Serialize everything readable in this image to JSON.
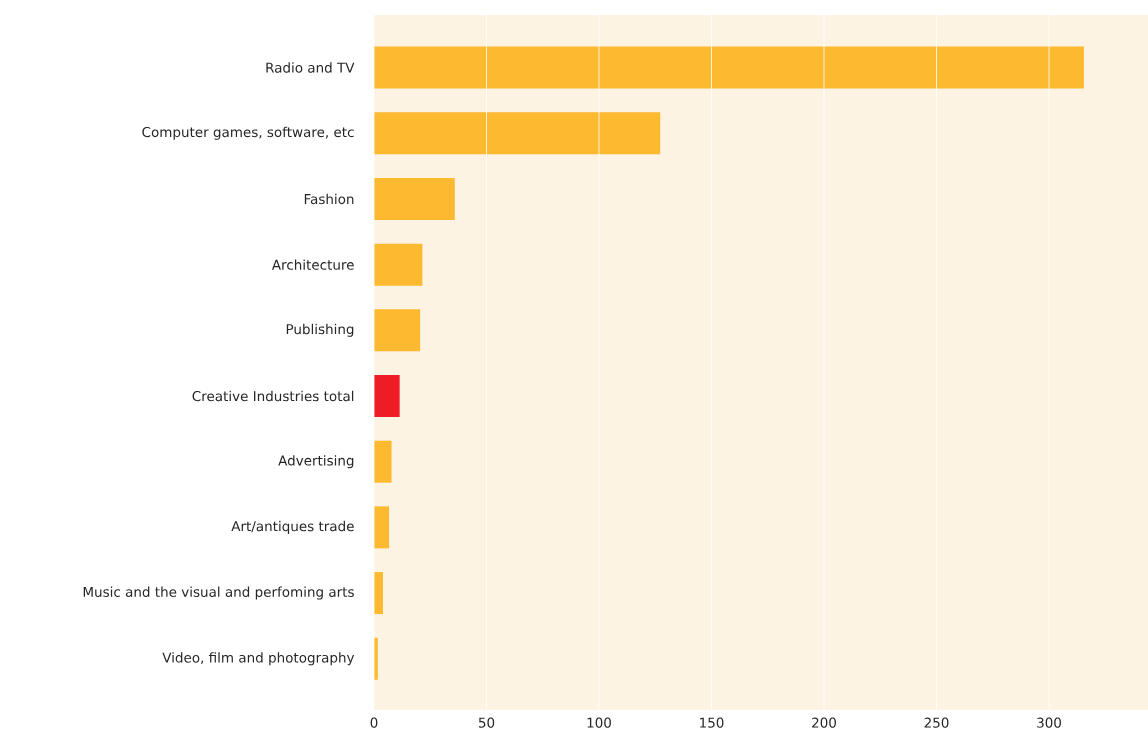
{
  "chart_data": {
    "type": "bar",
    "orientation": "horizontal",
    "categories": [
      "Radio and TV",
      "Computer games, software, etc",
      "Fashion",
      "Architecture",
      "Publishing",
      "Creative Industries total",
      "Advertising",
      "Art/antiques trade",
      "Music and the visual and perfoming arts",
      "Video, film and photography"
    ],
    "values": [
      315.5,
      127.2,
      35.9,
      21.5,
      20.5,
      11.4,
      7.8,
      6.7,
      4.0,
      1.7
    ],
    "colors": [
      "#fdb92f",
      "#fdb92f",
      "#fdb92f",
      "#fdb92f",
      "#fdb92f",
      "#ee1c25",
      "#fdb92f",
      "#fdb92f",
      "#fdb92f",
      "#fdb92f"
    ],
    "xlim": [
      0,
      344
    ],
    "xticks": [
      0,
      50,
      100,
      150,
      200,
      250,
      300
    ],
    "grid": "x"
  }
}
